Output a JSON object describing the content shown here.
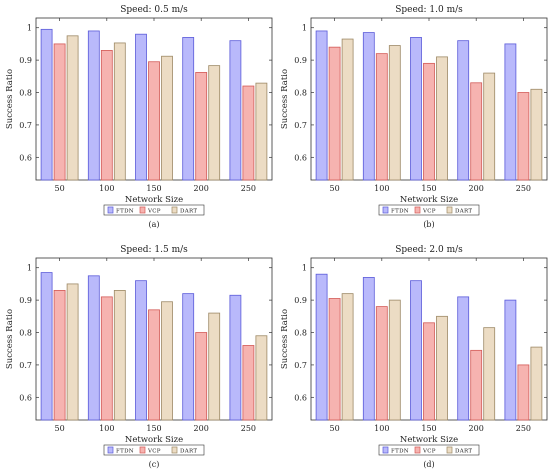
{
  "chart_data": [
    {
      "type": "bar",
      "panel": "(a)",
      "title": "Speed: 0.5 m/s",
      "xlabel": "Network Size",
      "ylabel": "Success Ratio",
      "categories": [
        "50",
        "100",
        "150",
        "200",
        "250"
      ],
      "ylim": [
        0.53,
        1.03
      ],
      "yticks": [
        "0.6",
        "0.7",
        "0.8",
        "0.9",
        "1"
      ],
      "grid": false,
      "legend_position": "bottom-center",
      "series": [
        {
          "name": "FTDN",
          "values": [
            0.995,
            0.99,
            0.98,
            0.97,
            0.96
          ]
        },
        {
          "name": "VCP",
          "values": [
            0.95,
            0.93,
            0.895,
            0.862,
            0.82
          ]
        },
        {
          "name": "DART",
          "values": [
            0.975,
            0.953,
            0.912,
            0.883,
            0.829
          ]
        }
      ]
    },
    {
      "type": "bar",
      "panel": "(b)",
      "title": "Speed: 1.0 m/s",
      "xlabel": "Network Size",
      "ylabel": "Success Ratio",
      "categories": [
        "50",
        "100",
        "150",
        "200",
        "250"
      ],
      "ylim": [
        0.53,
        1.03
      ],
      "yticks": [
        "0.6",
        "0.7",
        "0.8",
        "0.9",
        "1"
      ],
      "grid": false,
      "legend_position": "bottom-center",
      "series": [
        {
          "name": "FTDN",
          "values": [
            0.99,
            0.985,
            0.97,
            0.96,
            0.95
          ]
        },
        {
          "name": "VCP",
          "values": [
            0.94,
            0.92,
            0.89,
            0.83,
            0.8
          ]
        },
        {
          "name": "DART",
          "values": [
            0.965,
            0.945,
            0.91,
            0.86,
            0.81
          ]
        }
      ]
    },
    {
      "type": "bar",
      "panel": "(c)",
      "title": "Speed: 1.5 m/s",
      "xlabel": "Network Size",
      "ylabel": "Success Ratio",
      "categories": [
        "50",
        "100",
        "150",
        "200",
        "250"
      ],
      "ylim": [
        0.53,
        1.03
      ],
      "yticks": [
        "0.6",
        "0.7",
        "0.8",
        "0.9",
        "1"
      ],
      "grid": false,
      "legend_position": "bottom-center",
      "series": [
        {
          "name": "FTDN",
          "values": [
            0.985,
            0.975,
            0.96,
            0.92,
            0.915
          ]
        },
        {
          "name": "VCP",
          "values": [
            0.93,
            0.91,
            0.87,
            0.8,
            0.76
          ]
        },
        {
          "name": "DART",
          "values": [
            0.95,
            0.93,
            0.895,
            0.86,
            0.79
          ]
        }
      ]
    },
    {
      "type": "bar",
      "panel": "(d)",
      "title": "Speed: 2.0 m/s",
      "xlabel": "Network Size",
      "ylabel": "Success Ratio",
      "categories": [
        "50",
        "100",
        "150",
        "200",
        "250"
      ],
      "ylim": [
        0.53,
        1.03
      ],
      "yticks": [
        "0.6",
        "0.7",
        "0.8",
        "0.9",
        "1"
      ],
      "grid": false,
      "legend_position": "bottom-center",
      "series": [
        {
          "name": "FTDN",
          "values": [
            0.98,
            0.97,
            0.96,
            0.91,
            0.9
          ]
        },
        {
          "name": "VCP",
          "values": [
            0.905,
            0.88,
            0.83,
            0.745,
            0.7
          ]
        },
        {
          "name": "DART",
          "values": [
            0.92,
            0.9,
            0.85,
            0.815,
            0.755
          ]
        }
      ]
    }
  ],
  "colors": {
    "FTDN": {
      "fill": "#b9b9fb",
      "stroke": "#5a5ad9"
    },
    "VCP": {
      "fill": "#f6b3b0",
      "stroke": "#d35a57"
    },
    "DART": {
      "fill": "#ecdcc4",
      "stroke": "#9d8966"
    }
  }
}
